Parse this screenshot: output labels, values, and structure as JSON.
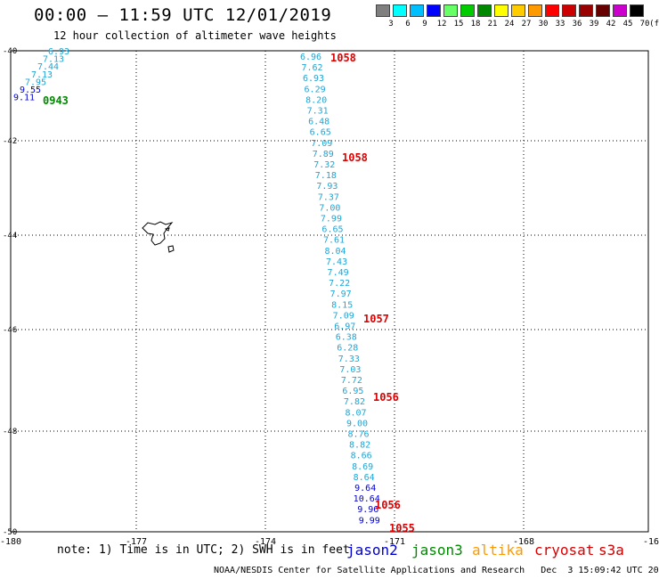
{
  "title": "00:00 – 11:59 UTC 12/01/2019",
  "subtitle": "12 hour collection of altimeter wave heights",
  "legend": {
    "ticks": [
      "3",
      "6",
      "9",
      "12",
      "15",
      "18",
      "21",
      "24",
      "27",
      "30",
      "33",
      "36",
      "39",
      "42",
      "45",
      "70",
      "(ft)"
    ],
    "colors": [
      "#7f7f7f",
      "#00ffff",
      "#00bfff",
      "#0000ff",
      "#66ff66",
      "#00cc00",
      "#008800",
      "#ffff00",
      "#ffcc00",
      "#ff9900",
      "#ff0000",
      "#cc0000",
      "#990000",
      "#660000",
      "#cc00cc",
      "#000000"
    ]
  },
  "colors": {
    "jason2": "#0000cc",
    "jason3": "#008800",
    "altika": "#ff9900",
    "cryosat": "#dd0000",
    "s3a": "#cc0000",
    "swh": "#1fa5d6"
  },
  "lat_labels": [
    "-40",
    "-42",
    "-44",
    "-46",
    "-48",
    "-50"
  ],
  "lon_labels": [
    "-180",
    "-177",
    "-174",
    "-171",
    "-168",
    "-16"
  ],
  "track_a": {
    "values": [
      "6.93",
      "7.13",
      "7.44",
      "7.13",
      "7.95",
      "9.55",
      "9.11"
    ],
    "value_sats": [
      "swh",
      "swh",
      "swh",
      "swh",
      "swh",
      "jason2",
      "jason2"
    ],
    "time": "0943",
    "time_sat": "jason3"
  },
  "track_b": {
    "values": [
      "6.96",
      "7.62",
      "6.93",
      "6.29",
      "8.20",
      "7.31",
      "6.48",
      "6.65",
      "7.09",
      "7.89",
      "7.32",
      "7.18",
      "7.93",
      "7.37",
      "7.00",
      "7.99",
      "6.65",
      "7.61",
      "8.04",
      "7.43",
      "7.49",
      "7.22",
      "7.97",
      "8.15",
      "7.09",
      "6.97",
      "6.38",
      "6.28",
      "7.33",
      "7.03",
      "7.72",
      "6.95",
      "7.82",
      "8.07",
      "9.00",
      "8.76",
      "8.82",
      "8.66",
      "8.69",
      "8.64",
      "9.64",
      "10.64",
      "9.96",
      "9.99"
    ],
    "value_sats": [
      "swh",
      "swh",
      "swh",
      "swh",
      "swh",
      "swh",
      "swh",
      "swh",
      "swh",
      "swh",
      "swh",
      "swh",
      "swh",
      "swh",
      "swh",
      "swh",
      "swh",
      "swh",
      "swh",
      "swh",
      "swh",
      "swh",
      "swh",
      "swh",
      "swh",
      "swh",
      "swh",
      "swh",
      "swh",
      "swh",
      "swh",
      "swh",
      "swh",
      "swh",
      "swh",
      "swh",
      "swh",
      "swh",
      "swh",
      "swh",
      "jason2",
      "jason2",
      "jason2",
      "jason2"
    ],
    "times": [
      "1058",
      "1058",
      "1057",
      "1056",
      "1056",
      "1055"
    ]
  },
  "note": "note: 1) Time is in UTC; 2) SWH is in feet",
  "satellites": [
    "jason2",
    "jason3",
    "altika",
    "cryosat",
    "s3a"
  ],
  "footer": "NOAA/NESDIS Center for Satellite Applications and Research   Dec  3 15:09:42 UTC 2019"
}
